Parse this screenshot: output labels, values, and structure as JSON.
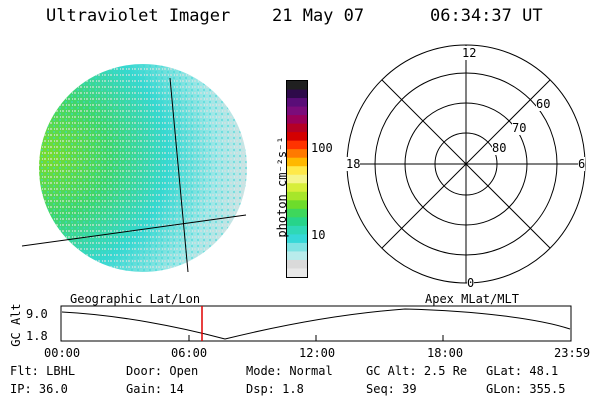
{
  "header": {
    "instrument": "Ultraviolet Imager",
    "date": "21 May 07",
    "time": "06:34:37 UT"
  },
  "colorbar": {
    "label": "photon cm⁻²s⁻¹",
    "ticks": [
      "100",
      "10"
    ],
    "colors": [
      "#202020",
      "#2e0a4a",
      "#5a0d78",
      "#7b0c7b",
      "#99005a",
      "#b50025",
      "#d40000",
      "#ff3300",
      "#ff7a00",
      "#ffb800",
      "#ffe94a",
      "#f5f58c",
      "#d7ee3a",
      "#a7e62a",
      "#6ddc2b",
      "#3ed75b",
      "#27d48a",
      "#2fd8b6",
      "#36d8d8",
      "#7fe3e3",
      "#b9ecec",
      "#dadada",
      "#e9e9e9"
    ]
  },
  "polar": {
    "mlt_labels": {
      "top": "12",
      "left": "18",
      "right": "6",
      "bottom": "0"
    },
    "lat_labels": [
      "60",
      "70",
      "80"
    ]
  },
  "track": {
    "left_label": "Geographic Lat/Lon",
    "right_label": "Apex MLat/MLT",
    "axis_title": "GC Alt",
    "y_ticks": [
      "9.0",
      "1.8"
    ],
    "x_ticks": [
      "00:00",
      "06:00",
      "12:00",
      "18:00",
      "23:59"
    ]
  },
  "info": {
    "row1": [
      {
        "label": "Flt:",
        "value": "LBHL"
      },
      {
        "label": "Door:",
        "value": "Open"
      },
      {
        "label": "Mode:",
        "value": "Normal"
      },
      {
        "label": "GC Alt:",
        "value": "2.5 Re"
      },
      {
        "label": "GLat:",
        "value": "48.1"
      }
    ],
    "row2": [
      {
        "label": "IP:",
        "value": "36.0"
      },
      {
        "label": "Gain:",
        "value": "14"
      },
      {
        "label": "Dsp:",
        "value": "1.8"
      },
      {
        "label": "Seq:",
        "value": "39"
      },
      {
        "label": "GLon:",
        "value": "355.5"
      }
    ]
  }
}
